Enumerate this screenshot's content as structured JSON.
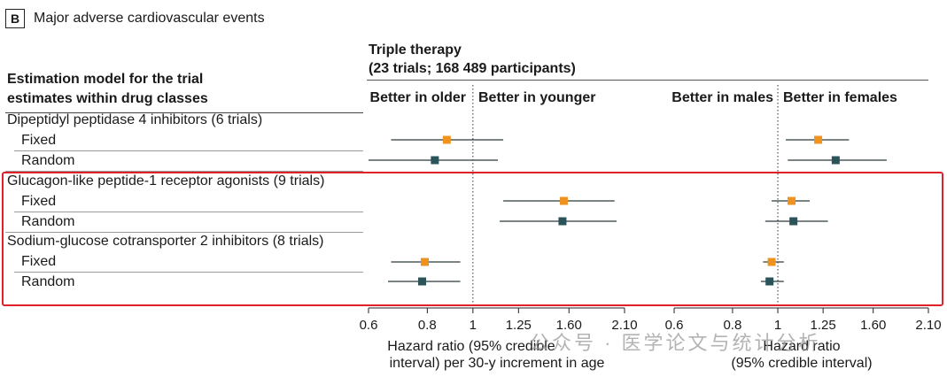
{
  "panel": {
    "letter": "B",
    "title": "Major adverse cardiovascular events"
  },
  "triple": {
    "line1": "Triple therapy",
    "line2": "(23 trials; 168 489 participants)"
  },
  "left_header": {
    "line1": "Estimation model for the trial",
    "line2": "estimates within drug classes"
  },
  "rows": [
    {
      "label": "Dipeptidyl peptidase 4 inhibitors (6 trials)",
      "kind": "group"
    },
    {
      "label": "Fixed",
      "kind": "model"
    },
    {
      "label": "Random",
      "kind": "model"
    },
    {
      "label": "Glucagon-like peptide-1 receptor agonists (9 trials)",
      "kind": "group"
    },
    {
      "label": "Fixed",
      "kind": "model"
    },
    {
      "label": "Random",
      "kind": "model"
    },
    {
      "label": "Sodium-glucose cotransporter 2 inhibitors (8 trials)",
      "kind": "group"
    },
    {
      "label": "Fixed",
      "kind": "model"
    },
    {
      "label": "Random",
      "kind": "model"
    }
  ],
  "colors": {
    "fixed": "#f0921e",
    "random": "#2a5459",
    "highlight": "#e0202a",
    "ref_line": "#333333"
  },
  "chart_data": [
    {
      "type": "forest",
      "direction_left": "Better in older",
      "direction_right": "Better in younger",
      "xlabel_line1": "Hazard ratio (95% credible",
      "xlabel_line2": "interval) per 30-y increment in age",
      "scale": "log",
      "xlim": [
        0.6,
        2.1
      ],
      "ticks": [
        0.6,
        0.8,
        1,
        1.25,
        1.6,
        2.1
      ],
      "tick_labels": [
        "0.6",
        "0.8",
        "1",
        "1.25",
        "1.60",
        "2.10"
      ],
      "reference": 1,
      "points": [
        {
          "row": 1,
          "model": "Fixed",
          "est": 0.88,
          "lo": 0.67,
          "hi": 1.16
        },
        {
          "row": 2,
          "model": "Random",
          "est": 0.83,
          "lo": 0.6,
          "hi": 1.13
        },
        {
          "row": 4,
          "model": "Fixed",
          "est": 1.56,
          "lo": 1.16,
          "hi": 2.0
        },
        {
          "row": 5,
          "model": "Random",
          "est": 1.55,
          "lo": 1.14,
          "hi": 2.02
        },
        {
          "row": 7,
          "model": "Fixed",
          "est": 0.79,
          "lo": 0.67,
          "hi": 0.94
        },
        {
          "row": 8,
          "model": "Random",
          "est": 0.78,
          "lo": 0.66,
          "hi": 0.94
        }
      ]
    },
    {
      "type": "forest",
      "direction_left": "Better in males",
      "direction_right": "Better in females",
      "xlabel_line1": "Hazard ratio",
      "xlabel_line2": "(95% credible interval)",
      "scale": "log",
      "xlim": [
        0.6,
        2.1
      ],
      "ticks": [
        0.6,
        0.8,
        1,
        1.25,
        1.6,
        2.1
      ],
      "tick_labels": [
        "0.6",
        "0.8",
        "1",
        "1.25",
        "1.60",
        "2.10"
      ],
      "reference": 1,
      "points": [
        {
          "row": 1,
          "model": "Fixed",
          "est": 1.22,
          "lo": 1.04,
          "hi": 1.42
        },
        {
          "row": 2,
          "model": "Random",
          "est": 1.33,
          "lo": 1.05,
          "hi": 1.71
        },
        {
          "row": 4,
          "model": "Fixed",
          "est": 1.07,
          "lo": 0.97,
          "hi": 1.17
        },
        {
          "row": 5,
          "model": "Random",
          "est": 1.08,
          "lo": 0.94,
          "hi": 1.28
        },
        {
          "row": 7,
          "model": "Fixed",
          "est": 0.97,
          "lo": 0.93,
          "hi": 1.03
        },
        {
          "row": 8,
          "model": "Random",
          "est": 0.96,
          "lo": 0.92,
          "hi": 1.03
        }
      ]
    }
  ],
  "watermark": "公众号 · 医学论文与统计分析"
}
